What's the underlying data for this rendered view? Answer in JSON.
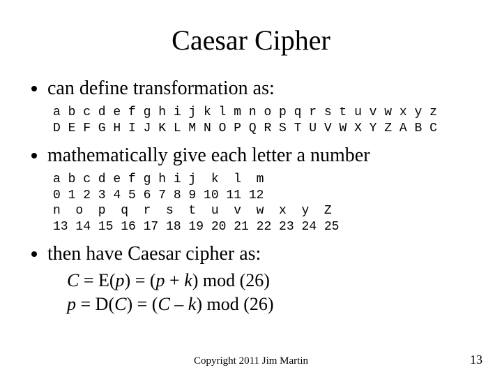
{
  "title": "Caesar Cipher",
  "bullets": {
    "b1": "can define transformation as:",
    "b2": "mathematically give each letter a number",
    "b3": "then have Caesar cipher as:"
  },
  "transform_table": {
    "row1": "a b c d e f g h i j k l m n o p q r s t u v w x y z",
    "row2": "D E F G H I J K L M N O P Q R S T U V W X Y Z A B C"
  },
  "number_table": {
    "row1": "a b c d e f g h i j  k  l  m",
    "row2": "0 1 2 3 4 5 6 7 8 9 10 11 12",
    "row3": "n  o  p  q  r  s  t  u  v  w  x  y  Z",
    "row4": "13 14 15 16 17 18 19 20 21 22 23 24 25"
  },
  "formulas": {
    "line1_C": "C",
    "line1_eq": " = E(",
    "line1_p": "p",
    "line1_mid": ") = (",
    "line1_p2": "p",
    "line1_plus": " + ",
    "line1_k": "k",
    "line1_end": ") mod (26)",
    "line2_p": "p",
    "line2_eq": " = D(",
    "line2_C": "C",
    "line2_mid": ") = (",
    "line2_C2": "C",
    "line2_minus": " – ",
    "line2_k": "k",
    "line2_end": ") mod (26)"
  },
  "footer": "Copyright 2011 Jim Martin",
  "page_number": "13"
}
